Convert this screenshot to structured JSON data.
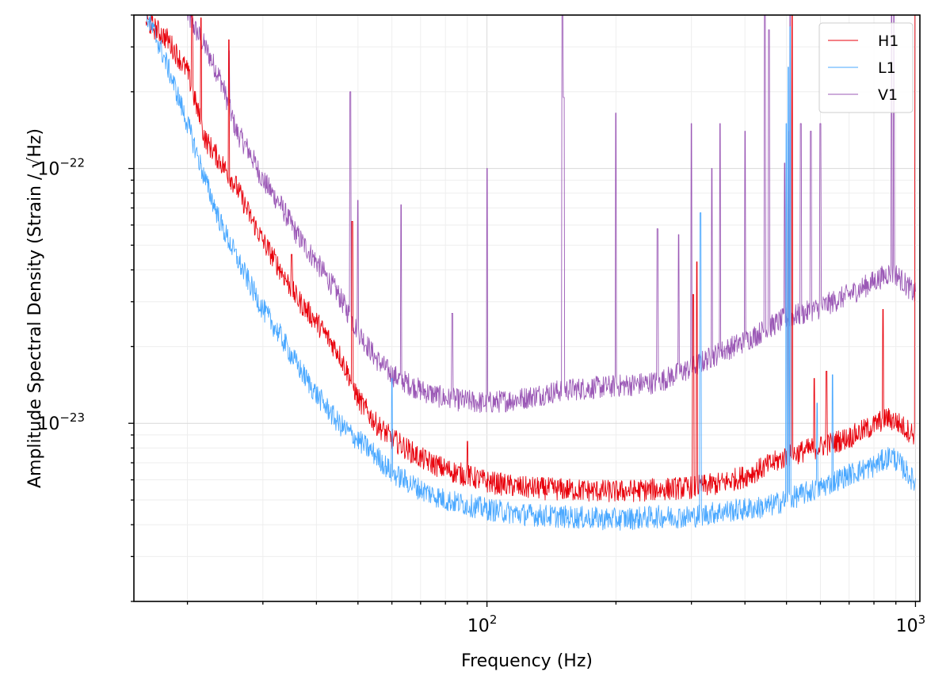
{
  "chart_data": {
    "type": "line",
    "title": "",
    "xlabel": "Frequency (Hz)",
    "ylabel": "Amplitude Spectral Density (Strain / √Hz)",
    "x_scale": "log",
    "y_scale": "log",
    "xlim": [
      15,
      1024
    ],
    "ylim": [
      2e-24,
      4e-22
    ],
    "grid": true,
    "legend_position": "top-right",
    "x_ticks": [
      {
        "value": 100,
        "base": "10",
        "exp": "2"
      },
      {
        "value": 1000,
        "base": "10",
        "exp": "3"
      }
    ],
    "y_ticks": [
      {
        "value": 1e-23,
        "base": "10",
        "exp": "−23"
      },
      {
        "value": 1e-22,
        "base": "10",
        "exp": "−22"
      }
    ],
    "series": [
      {
        "name": "H1",
        "color": "#e8000b",
        "points": [
          [
            16,
            3.8e-22
          ],
          [
            18,
            3.2e-22
          ],
          [
            20,
            2.4e-22
          ],
          [
            22,
            1.3e-22
          ],
          [
            24,
            1.05e-22
          ],
          [
            26,
            8.5e-23
          ],
          [
            28,
            6.5e-23
          ],
          [
            30,
            5.2e-23
          ],
          [
            33,
            4e-23
          ],
          [
            36,
            3.1e-23
          ],
          [
            40,
            2.5e-23
          ],
          [
            45,
            1.9e-23
          ],
          [
            48,
            1.5e-23
          ],
          [
            50,
            1.25e-23
          ],
          [
            55,
            1e-23
          ],
          [
            60,
            8.7e-24
          ],
          [
            70,
            7.3e-24
          ],
          [
            80,
            6.6e-24
          ],
          [
            100,
            5.9e-24
          ],
          [
            120,
            5.6e-24
          ],
          [
            150,
            5.5e-24
          ],
          [
            200,
            5.4e-24
          ],
          [
            250,
            5.5e-24
          ],
          [
            300,
            5.6e-24
          ],
          [
            350,
            5.8e-24
          ],
          [
            400,
            6.2e-24
          ],
          [
            450,
            6.8e-24
          ],
          [
            500,
            7.4e-24
          ],
          [
            550,
            7.8e-24
          ],
          [
            600,
            8.1e-24
          ],
          [
            700,
            8.8e-24
          ],
          [
            800,
            9.8e-24
          ],
          [
            850,
            1.05e-23
          ],
          [
            900,
            1.02e-23
          ],
          [
            950,
            9.5e-24
          ],
          [
            1000,
            9e-24
          ]
        ],
        "peaks": [
          [
            20.5,
            4e-22
          ],
          [
            21.5,
            3.9e-22
          ],
          [
            25,
            3.2e-22
          ],
          [
            35,
            4.6e-23
          ],
          [
            42,
            1.6e-23
          ],
          [
            48.5,
            6.2e-23
          ],
          [
            61,
            9e-24
          ],
          [
            90,
            8.5e-24
          ],
          [
            303,
            3.2e-23
          ],
          [
            309,
            4.3e-23
          ],
          [
            505,
            1.4e-22
          ],
          [
            515,
            4e-22
          ],
          [
            580,
            1.5e-23
          ],
          [
            620,
            1.6e-23
          ],
          [
            840,
            2.8e-23
          ],
          [
            1000,
            6e-22
          ]
        ]
      },
      {
        "name": "L1",
        "color": "#4aa8ff",
        "points": [
          [
            16,
            4e-22
          ],
          [
            17,
            3.2e-22
          ],
          [
            18,
            2.5e-22
          ],
          [
            20,
            1.5e-22
          ],
          [
            22,
            9e-23
          ],
          [
            24,
            6e-23
          ],
          [
            26,
            4.5e-23
          ],
          [
            28,
            3.5e-23
          ],
          [
            30,
            2.8e-23
          ],
          [
            33,
            2.2e-23
          ],
          [
            36,
            1.7e-23
          ],
          [
            40,
            1.3e-23
          ],
          [
            45,
            1e-23
          ],
          [
            50,
            8.6e-24
          ],
          [
            55,
            7.5e-24
          ],
          [
            60,
            6.4e-24
          ],
          [
            70,
            5.5e-24
          ],
          [
            80,
            5e-24
          ],
          [
            100,
            4.6e-24
          ],
          [
            120,
            4.4e-24
          ],
          [
            150,
            4.3e-24
          ],
          [
            200,
            4.2e-24
          ],
          [
            250,
            4.3e-24
          ],
          [
            300,
            4.3e-24
          ],
          [
            350,
            4.5e-24
          ],
          [
            400,
            4.6e-24
          ],
          [
            450,
            4.7e-24
          ],
          [
            500,
            5e-24
          ],
          [
            550,
            5.3e-24
          ],
          [
            600,
            5.6e-24
          ],
          [
            700,
            6.3e-24
          ],
          [
            800,
            6.8e-24
          ],
          [
            880,
            7.5e-24
          ],
          [
            950,
            6.5e-24
          ],
          [
            1000,
            5.8e-24
          ]
        ],
        "peaks": [
          [
            43,
            1.1e-23
          ],
          [
            60,
            1.5e-23
          ],
          [
            315,
            6.7e-23
          ],
          [
            500,
            1.5e-22
          ],
          [
            505,
            2.5e-22
          ],
          [
            510,
            3.6e-22
          ],
          [
            590,
            1.2e-23
          ],
          [
            640,
            1.55e-23
          ],
          [
            1010,
            3.5e-22
          ]
        ]
      },
      {
        "name": "V1",
        "color": "#9b59b6",
        "points": [
          [
            20,
            4e-22
          ],
          [
            22,
            3e-22
          ],
          [
            24,
            2.2e-22
          ],
          [
            26,
            1.4e-22
          ],
          [
            28,
            1.15e-22
          ],
          [
            30,
            9e-23
          ],
          [
            33,
            7.2e-23
          ],
          [
            36,
            5.5e-23
          ],
          [
            40,
            4.3e-23
          ],
          [
            45,
            3.2e-23
          ],
          [
            50,
            2.3e-23
          ],
          [
            55,
            1.8e-23
          ],
          [
            60,
            1.55e-23
          ],
          [
            70,
            1.35e-23
          ],
          [
            80,
            1.25e-23
          ],
          [
            100,
            1.2e-23
          ],
          [
            120,
            1.25e-23
          ],
          [
            150,
            1.35e-23
          ],
          [
            200,
            1.4e-23
          ],
          [
            250,
            1.45e-23
          ],
          [
            300,
            1.65e-23
          ],
          [
            350,
            1.9e-23
          ],
          [
            400,
            2.1e-23
          ],
          [
            450,
            2.35e-23
          ],
          [
            500,
            2.6e-23
          ],
          [
            550,
            2.7e-23
          ],
          [
            600,
            2.85e-23
          ],
          [
            700,
            3.2e-23
          ],
          [
            800,
            3.6e-23
          ],
          [
            870,
            3.9e-23
          ],
          [
            900,
            3.85e-23
          ],
          [
            950,
            3.5e-23
          ],
          [
            1000,
            3.2e-23
          ]
        ],
        "peaks": [
          [
            25,
            2.9e-22
          ],
          [
            48,
            2e-22
          ],
          [
            50,
            7.5e-23
          ],
          [
            63,
            7.2e-23
          ],
          [
            83,
            2.7e-23
          ],
          [
            100,
            1e-22
          ],
          [
            150,
            4e-22
          ],
          [
            151,
            1.9e-22
          ],
          [
            200,
            1.65e-22
          ],
          [
            250,
            5.8e-23
          ],
          [
            280,
            5.5e-23
          ],
          [
            300,
            1.5e-22
          ],
          [
            335,
            1e-22
          ],
          [
            350,
            1.5e-22
          ],
          [
            400,
            1.4e-22
          ],
          [
            445,
            4e-22
          ],
          [
            455,
            3.5e-22
          ],
          [
            495,
            1.05e-22
          ],
          [
            510,
            4e-22
          ],
          [
            540,
            1.5e-22
          ],
          [
            570,
            1.4e-22
          ],
          [
            600,
            1.5e-22
          ],
          [
            880,
            4e-22
          ],
          [
            890,
            4e-22
          ]
        ]
      }
    ]
  }
}
